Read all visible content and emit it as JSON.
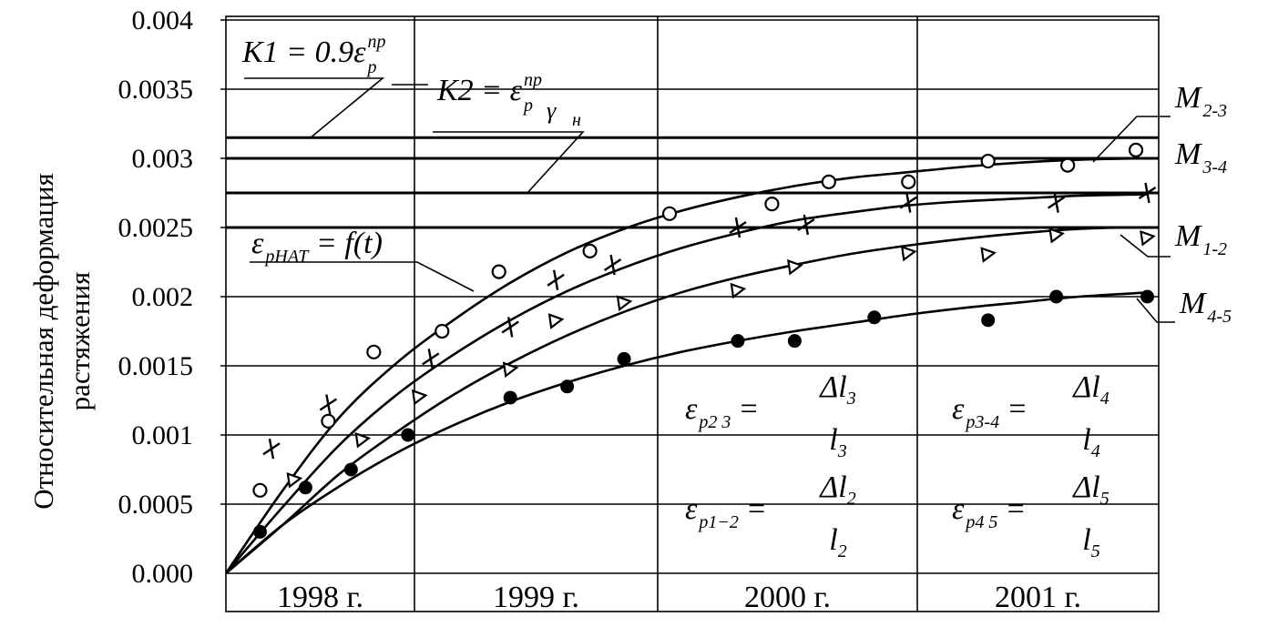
{
  "chart_data": {
    "type": "line",
    "ylabel_lines": [
      "Относительная деформация",
      "растяжения"
    ],
    "ylim": [
      0,
      0.004
    ],
    "y_ticks": [
      "0.000",
      "0.0005",
      "0.001",
      "0.0015",
      "0.002",
      "0.0025",
      "0.003",
      "0.0035",
      "0.004"
    ],
    "x_categories": [
      "1998 г.",
      "1999 г.",
      "2000 г.",
      "2001 г."
    ],
    "xlim": [
      0,
      4.1
    ],
    "grid": true,
    "reference_lines": [
      {
        "value": 0.00315,
        "label_main": "K1 = 0.9ε",
        "label_sub": "p",
        "label_sup": "пр"
      },
      {
        "value": 0.00275,
        "label_main": "K2 = ε",
        "label_sub": "p",
        "label_sup": "пр",
        "label_den": "γ",
        "label_den_sub": "н"
      },
      {
        "value": 0.003,
        "label_main": "",
        "label_sub": ""
      },
      {
        "value": 0.0025,
        "label_main": "",
        "label_sub": ""
      }
    ],
    "series": [
      {
        "name": "M",
        "name_sub": "2-3",
        "marker": "circle-open",
        "points": [
          [
            0.15,
            0.0006
          ],
          [
            0.45,
            0.0011
          ],
          [
            0.65,
            0.0016
          ],
          [
            0.95,
            0.00175
          ],
          [
            1.2,
            0.00218
          ],
          [
            1.6,
            0.00233
          ],
          [
            1.95,
            0.0026
          ],
          [
            2.4,
            0.00267
          ],
          [
            2.65,
            0.00283
          ],
          [
            3.0,
            0.00283
          ],
          [
            3.35,
            0.00298
          ],
          [
            3.7,
            0.00295
          ],
          [
            4.0,
            0.00306
          ]
        ],
        "curve": [
          [
            0,
            0
          ],
          [
            0.25,
            0.0006
          ],
          [
            0.5,
            0.00113
          ],
          [
            0.75,
            0.00152
          ],
          [
            1.0,
            0.00183
          ],
          [
            1.25,
            0.0021
          ],
          [
            1.5,
            0.00232
          ],
          [
            1.75,
            0.00249
          ],
          [
            2.0,
            0.00262
          ],
          [
            2.25,
            0.00272
          ],
          [
            2.5,
            0.0028
          ],
          [
            2.75,
            0.00286
          ],
          [
            3.0,
            0.0029
          ],
          [
            3.25,
            0.00294
          ],
          [
            3.5,
            0.00297
          ],
          [
            3.75,
            0.00299
          ],
          [
            4.05,
            0.003
          ]
        ]
      },
      {
        "name": "M",
        "name_sub": "3-4",
        "marker": "cross",
        "points": [
          [
            0.2,
            0.0009
          ],
          [
            0.45,
            0.00122
          ],
          [
            0.9,
            0.00155
          ],
          [
            1.25,
            0.00178
          ],
          [
            1.45,
            0.00212
          ],
          [
            1.7,
            0.00223
          ],
          [
            2.25,
            0.0025
          ],
          [
            2.55,
            0.00252
          ],
          [
            3.0,
            0.00268
          ],
          [
            3.65,
            0.00268
          ],
          [
            4.05,
            0.00275
          ]
        ],
        "curve": [
          [
            0,
            0
          ],
          [
            0.25,
            0.00048
          ],
          [
            0.5,
            0.00093
          ],
          [
            0.75,
            0.00129
          ],
          [
            1.0,
            0.00158
          ],
          [
            1.25,
            0.00183
          ],
          [
            1.5,
            0.00204
          ],
          [
            1.75,
            0.00221
          ],
          [
            2.0,
            0.00235
          ],
          [
            2.25,
            0.00246
          ],
          [
            2.5,
            0.00255
          ],
          [
            2.75,
            0.00261
          ],
          [
            3.0,
            0.00266
          ],
          [
            3.25,
            0.00269
          ],
          [
            3.5,
            0.00271
          ],
          [
            3.75,
            0.00273
          ],
          [
            4.05,
            0.00274
          ]
        ]
      },
      {
        "name": "M",
        "name_sub": "1-2",
        "marker": "triangle-open",
        "points": [
          [
            0.3,
            0.00068
          ],
          [
            0.6,
            0.00097
          ],
          [
            0.85,
            0.00128
          ],
          [
            1.25,
            0.00148
          ],
          [
            1.45,
            0.00183
          ],
          [
            1.75,
            0.00196
          ],
          [
            2.25,
            0.00205
          ],
          [
            2.5,
            0.00222
          ],
          [
            3.0,
            0.00232
          ],
          [
            3.35,
            0.00231
          ],
          [
            3.65,
            0.00245
          ],
          [
            4.05,
            0.00243
          ]
        ],
        "curve": [
          [
            0,
            0
          ],
          [
            0.25,
            0.00035
          ],
          [
            0.5,
            0.00072
          ],
          [
            0.75,
            0.00102
          ],
          [
            1.0,
            0.00129
          ],
          [
            1.25,
            0.00152
          ],
          [
            1.5,
            0.00172
          ],
          [
            1.75,
            0.00189
          ],
          [
            2.0,
            0.00203
          ],
          [
            2.25,
            0.00214
          ],
          [
            2.5,
            0.00223
          ],
          [
            2.75,
            0.00231
          ],
          [
            3.0,
            0.00237
          ],
          [
            3.25,
            0.00242
          ],
          [
            3.5,
            0.00246
          ],
          [
            3.75,
            0.00249
          ],
          [
            3.95,
            0.0025
          ]
        ]
      },
      {
        "name": "M",
        "name_sub": "4-5",
        "marker": "circle-filled",
        "points": [
          [
            0.15,
            0.0003
          ],
          [
            0.35,
            0.00062
          ],
          [
            0.55,
            0.00075
          ],
          [
            0.8,
            0.001
          ],
          [
            1.25,
            0.00127
          ],
          [
            1.5,
            0.00135
          ],
          [
            1.75,
            0.00155
          ],
          [
            2.25,
            0.00168
          ],
          [
            2.5,
            0.00168
          ],
          [
            2.85,
            0.00185
          ],
          [
            3.35,
            0.00183
          ],
          [
            3.65,
            0.002
          ],
          [
            4.05,
            0.002
          ]
        ],
        "curve": [
          [
            0,
            0
          ],
          [
            0.25,
            0.00035
          ],
          [
            0.5,
            0.00063
          ],
          [
            0.75,
            0.00087
          ],
          [
            1.0,
            0.00107
          ],
          [
            1.25,
            0.00124
          ],
          [
            1.5,
            0.00138
          ],
          [
            1.75,
            0.0015
          ],
          [
            2.0,
            0.0016
          ],
          [
            2.25,
            0.00168
          ],
          [
            2.5,
            0.00175
          ],
          [
            2.75,
            0.00181
          ],
          [
            3.0,
            0.00187
          ],
          [
            3.25,
            0.00192
          ],
          [
            3.5,
            0.00196
          ],
          [
            3.75,
            0.002
          ],
          [
            4.05,
            0.00203
          ]
        ]
      }
    ],
    "annotations": [
      {
        "id": "f",
        "text_main": "ε",
        "text_sub": "pНАТ",
        "text_rest": " = f(t)"
      },
      {
        "id": "e23",
        "lhs": "ε",
        "lhs_sub": "p2 3",
        "num": "Δl",
        "num_sub": "3",
        "den": "l",
        "den_sub": "3"
      },
      {
        "id": "e12",
        "lhs": "ε",
        "lhs_sub": "p1−2",
        "num": "Δl",
        "num_sub": "2",
        "den": "l",
        "den_sub": "2"
      },
      {
        "id": "e34",
        "lhs": "ε",
        "lhs_sub": "p3-4",
        "num": "Δl",
        "num_sub": "4",
        "den": "l",
        "den_sub": "4"
      },
      {
        "id": "e45",
        "lhs": "ε",
        "lhs_sub": "p4 5",
        "num": "Δl",
        "num_sub": "5",
        "den": "l",
        "den_sub": "5"
      }
    ]
  }
}
